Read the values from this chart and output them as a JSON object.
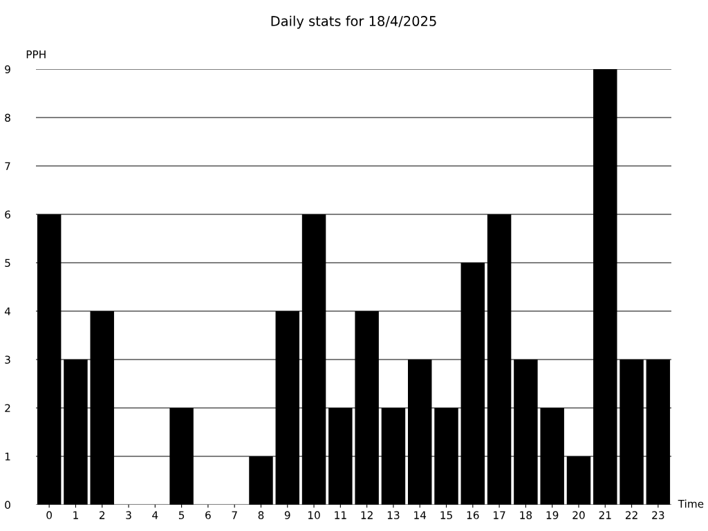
{
  "chart_data": {
    "type": "bar",
    "title": "Daily stats for 18/4/2025",
    "xlabel": "Time",
    "ylabel": "PPH",
    "categories": [
      "0",
      "1",
      "2",
      "3",
      "4",
      "5",
      "6",
      "7",
      "8",
      "9",
      "10",
      "11",
      "12",
      "13",
      "14",
      "15",
      "16",
      "17",
      "18",
      "19",
      "20",
      "21",
      "22",
      "23"
    ],
    "values": [
      6,
      3,
      4,
      0,
      0,
      2,
      0,
      0,
      1,
      4,
      6,
      2,
      4,
      2,
      3,
      2,
      5,
      6,
      3,
      2,
      1,
      9,
      3,
      3
    ],
    "color": "#000000",
    "ylim": [
      0,
      9
    ],
    "yticks": [
      0,
      1,
      2,
      3,
      4,
      5,
      6,
      7,
      8,
      9
    ],
    "grid": "y"
  }
}
